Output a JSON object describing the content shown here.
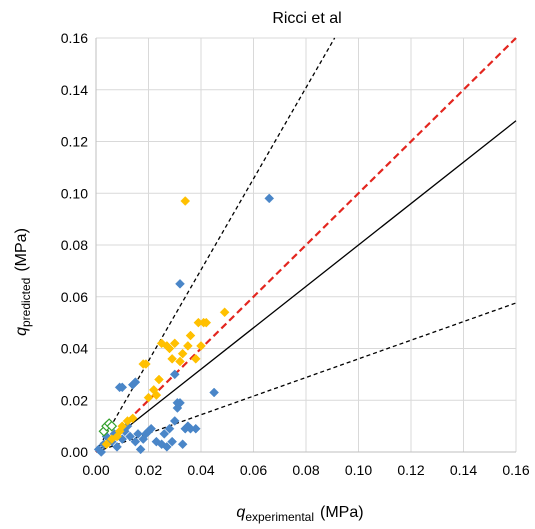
{
  "chart_data": {
    "type": "scatter",
    "title": "Ricci et al",
    "xlabel": {
      "var": "q",
      "sub": "experimental",
      "unit": "(MPa)"
    },
    "ylabel": {
      "var": "q",
      "sub": "predicted",
      "unit": "(MPa)"
    },
    "xlim": [
      0,
      0.16
    ],
    "ylim": [
      0,
      0.16
    ],
    "xticks": [
      "0.00",
      "0.02",
      "0.04",
      "0.06",
      "0.08",
      "0.10",
      "0.12",
      "0.14",
      "0.16"
    ],
    "yticks": [
      "0.00",
      "0.02",
      "0.04",
      "0.06",
      "0.08",
      "0.10",
      "0.12",
      "0.14",
      "0.16"
    ],
    "grid": true,
    "lines": [
      {
        "style": "solid",
        "color": "#000000",
        "slope": 0.8
      },
      {
        "style": "dashed",
        "color": "#000000",
        "slope": 1.76
      },
      {
        "style": "dashed",
        "color": "#000000",
        "slope": 0.36
      },
      {
        "style": "dashed",
        "color": "#e3261f",
        "slope": 1.0
      }
    ],
    "series": [
      {
        "marker": "diamond",
        "color": "#4a86c8",
        "fill": true,
        "points": [
          [
            0.001,
            0.001
          ],
          [
            0.002,
            0.0
          ],
          [
            0.003,
            0.003
          ],
          [
            0.004,
            0.006
          ],
          [
            0.005,
            0.005
          ],
          [
            0.006,
            0.004
          ],
          [
            0.007,
            0.007
          ],
          [
            0.008,
            0.002
          ],
          [
            0.009,
            0.025
          ],
          [
            0.01,
            0.025
          ],
          [
            0.01,
            0.005
          ],
          [
            0.011,
            0.008
          ],
          [
            0.012,
            0.01
          ],
          [
            0.013,
            0.006
          ],
          [
            0.014,
            0.026
          ],
          [
            0.015,
            0.027
          ],
          [
            0.015,
            0.004
          ],
          [
            0.016,
            0.007
          ],
          [
            0.017,
            0.001
          ],
          [
            0.018,
            0.005
          ],
          [
            0.019,
            0.007
          ],
          [
            0.02,
            0.008
          ],
          [
            0.021,
            0.009
          ],
          [
            0.023,
            0.004
          ],
          [
            0.025,
            0.003
          ],
          [
            0.026,
            0.007
          ],
          [
            0.027,
            0.002
          ],
          [
            0.028,
            0.009
          ],
          [
            0.029,
            0.004
          ],
          [
            0.03,
            0.03
          ],
          [
            0.03,
            0.012
          ],
          [
            0.031,
            0.017
          ],
          [
            0.031,
            0.019
          ],
          [
            0.032,
            0.065
          ],
          [
            0.032,
            0.019
          ],
          [
            0.033,
            0.003
          ],
          [
            0.034,
            0.009
          ],
          [
            0.035,
            0.01
          ],
          [
            0.036,
            0.009
          ],
          [
            0.038,
            0.009
          ],
          [
            0.045,
            0.023
          ],
          [
            0.066,
            0.098
          ]
        ]
      },
      {
        "marker": "diamond",
        "color": "#ffc000",
        "fill": true,
        "points": [
          [
            0.004,
            0.003
          ],
          [
            0.006,
            0.005
          ],
          [
            0.008,
            0.006
          ],
          [
            0.009,
            0.008
          ],
          [
            0.01,
            0.01
          ],
          [
            0.012,
            0.012
          ],
          [
            0.014,
            0.013
          ],
          [
            0.018,
            0.034
          ],
          [
            0.019,
            0.034
          ],
          [
            0.02,
            0.021
          ],
          [
            0.022,
            0.024
          ],
          [
            0.023,
            0.022
          ],
          [
            0.024,
            0.028
          ],
          [
            0.025,
            0.042
          ],
          [
            0.027,
            0.041
          ],
          [
            0.028,
            0.04
          ],
          [
            0.029,
            0.036
          ],
          [
            0.03,
            0.042
          ],
          [
            0.032,
            0.035
          ],
          [
            0.033,
            0.038
          ],
          [
            0.034,
            0.097
          ],
          [
            0.035,
            0.041
          ],
          [
            0.036,
            0.045
          ],
          [
            0.038,
            0.036
          ],
          [
            0.039,
            0.05
          ],
          [
            0.04,
            0.041
          ],
          [
            0.041,
            0.05
          ],
          [
            0.042,
            0.05
          ],
          [
            0.049,
            0.054
          ]
        ]
      },
      {
        "marker": "diamond",
        "color": "#33a02c",
        "fill": false,
        "points": [
          [
            0.003,
            0.008
          ],
          [
            0.004,
            0.01
          ],
          [
            0.005,
            0.011
          ],
          [
            0.006,
            0.01
          ]
        ]
      }
    ]
  }
}
